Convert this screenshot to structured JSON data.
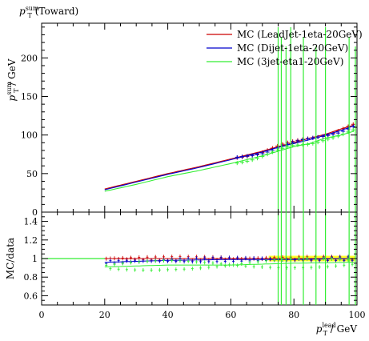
{
  "title": {
    "symbol": "p",
    "superscript": "sum",
    "subscript": "T",
    "text": " (Toward)"
  },
  "upper_ylabel": {
    "symbol": "p",
    "superscript": "sum",
    "subscript": "T",
    "text": " / GeV"
  },
  "lower_ylabel": "MC/data",
  "xlabel": {
    "symbol": "p",
    "superscript": "lead",
    "subscript": "T",
    "text": " / GeV"
  },
  "colors": {
    "leadjet": "#cc0000",
    "dijet": "#0000cc",
    "threejet": "#33ee33",
    "data": "#000000",
    "ratio_band": "#ffff00"
  },
  "chart_data": [
    {
      "type": "scatter",
      "panel": "main",
      "xlim": [
        0,
        100
      ],
      "ylim": [
        0,
        245
      ],
      "yticks": [
        0,
        50,
        100,
        150,
        200
      ],
      "legend_placement": "top-right",
      "grid": false,
      "series": [
        {
          "name": "MC (LeadJet-1eta-20GeV)",
          "key": "leadjet",
          "x": [
            20,
            30,
            40,
            50,
            60,
            65,
            70,
            75,
            80,
            85,
            90,
            95,
            99
          ],
          "y": [
            30,
            40,
            50,
            59,
            69,
            74,
            79,
            85,
            90,
            96,
            101,
            108,
            113
          ]
        },
        {
          "name": "MC (Dijet-1eta-20GeV)",
          "key": "dijet",
          "x": [
            20,
            30,
            40,
            50,
            60,
            65,
            70,
            75,
            80,
            85,
            90,
            95,
            99
          ],
          "y": [
            29,
            39,
            49,
            58,
            68,
            73,
            78,
            84,
            89,
            94,
            100,
            106,
            112
          ]
        },
        {
          "name": "MC (3jet-eta1-20GeV)",
          "key": "threejet",
          "x": [
            20,
            30,
            40,
            50,
            60,
            65,
            70,
            75,
            80,
            85,
            90,
            95,
            99
          ],
          "y": [
            27,
            36,
            46,
            54,
            63,
            68,
            73,
            79,
            85,
            89,
            96,
            100,
            105
          ],
          "spikes_x": [
            75,
            76,
            77.5,
            79,
            83,
            87,
            90,
            97.5,
            99.5
          ]
        }
      ]
    },
    {
      "type": "scatter",
      "panel": "ratio",
      "xlim": [
        0,
        100
      ],
      "ylim": [
        0.5,
        1.5
      ],
      "yticks": [
        0.6,
        0.8,
        1,
        1.2,
        1.4
      ],
      "xticks": [
        0,
        20,
        40,
        60,
        80,
        100
      ],
      "reference": 1,
      "series": [
        {
          "key": "leadjet",
          "x": [
            20,
            40,
            60,
            80,
            99
          ],
          "y": [
            1.0,
            1.0,
            1.0,
            1.0,
            1.0
          ]
        },
        {
          "key": "dijet",
          "x": [
            20,
            40,
            60,
            80,
            99
          ],
          "y": [
            0.96,
            0.98,
            0.99,
            0.99,
            1.0
          ]
        },
        {
          "key": "threejet",
          "x": [
            20,
            40,
            60,
            80,
            99
          ],
          "y": [
            0.91,
            0.93,
            0.93,
            0.95,
            0.96
          ]
        }
      ]
    }
  ]
}
